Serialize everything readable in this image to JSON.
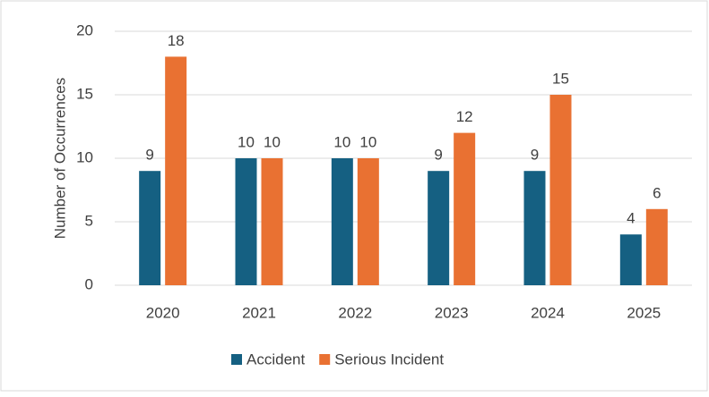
{
  "chart_data": {
    "type": "bar",
    "y_label": "Number of Occurrences",
    "categories": [
      "2020",
      "2021",
      "2022",
      "2023",
      "2024",
      "2025"
    ],
    "series": [
      {
        "name": "Accident",
        "color": "#156082",
        "values": [
          9,
          10,
          10,
          9,
          9,
          4
        ]
      },
      {
        "name": "Serious Incident",
        "color": "#e97132",
        "values": [
          18,
          10,
          10,
          12,
          15,
          6
        ]
      }
    ],
    "ylim": [
      0,
      20
    ],
    "yticks": [
      0,
      5,
      10,
      15,
      20
    ],
    "grid": true
  }
}
